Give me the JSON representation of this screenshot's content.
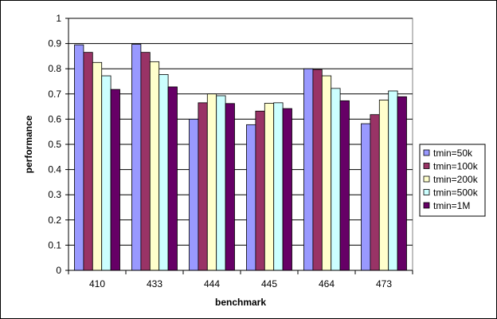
{
  "chart_data": {
    "type": "bar",
    "xlabel": "benchmark",
    "ylabel": "performance",
    "ylim": [
      0,
      1
    ],
    "ytick_step": 0.1,
    "grid": "horizontal",
    "legend_position": "right",
    "categories": [
      "410",
      "433",
      "444",
      "445",
      "464",
      "473"
    ],
    "series": [
      {
        "name": "tmin=50k",
        "color": "#9999ff",
        "values": [
          0.895,
          0.897,
          0.6,
          0.578,
          0.8,
          0.582
        ]
      },
      {
        "name": "tmin=100k",
        "color": "#993366",
        "values": [
          0.865,
          0.865,
          0.665,
          0.632,
          0.797,
          0.618
        ]
      },
      {
        "name": "tmin=200k",
        "color": "#ffffcc",
        "values": [
          0.825,
          0.828,
          0.7,
          0.663,
          0.772,
          0.676
        ]
      },
      {
        "name": "tmin=500k",
        "color": "#ccffff",
        "values": [
          0.772,
          0.777,
          0.693,
          0.665,
          0.722,
          0.712
        ]
      },
      {
        "name": "tmin=1M",
        "color": "#660066",
        "values": [
          0.718,
          0.728,
          0.662,
          0.642,
          0.673,
          0.689
        ]
      }
    ]
  }
}
